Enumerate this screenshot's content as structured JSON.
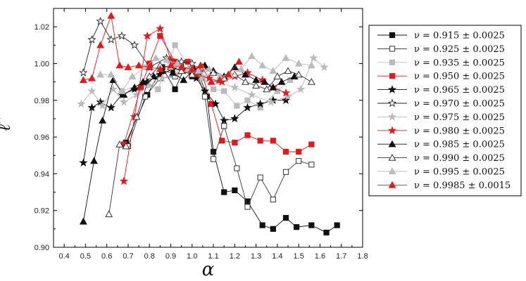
{
  "chart_data": {
    "type": "line",
    "title": "",
    "xlabel": "α",
    "ylabel": "ℓ̂",
    "xlim": [
      0.35,
      1.8
    ],
    "ylim": [
      0.9,
      1.03
    ],
    "x_ticks": [
      "0.4",
      "0.5",
      "0.6",
      "0.7",
      "0.8",
      "0.9",
      "1.0",
      "1.1",
      "1.2",
      "1.3",
      "1.4",
      "1.5",
      "1.6",
      "1.7",
      "1.8"
    ],
    "y_ticks": [
      "0.90",
      "0.92",
      "0.94",
      "0.96",
      "0.98",
      "1.00",
      "1.02"
    ],
    "grid": false,
    "legend_position": "right",
    "series": [
      {
        "name": "ν = 0.915 ± 0.0025",
        "color": "#111111",
        "marker": "square",
        "filled": true,
        "x": [
          0.69,
          0.79,
          0.86,
          0.92,
          0.97,
          1.0,
          1.03,
          1.07,
          1.1,
          1.15,
          1.2,
          1.26,
          1.33,
          1.38,
          1.44,
          1.49,
          1.56,
          1.63,
          1.68
        ],
        "y": [
          0.957,
          0.983,
          0.998,
          0.986,
          0.999,
          0.993,
          0.995,
          0.982,
          0.952,
          0.93,
          0.931,
          0.925,
          0.912,
          0.91,
          0.916,
          0.911,
          0.912,
          0.908,
          0.912
        ]
      },
      {
        "name": "ν = 0.925 ± 0.0025",
        "color": "#333333",
        "marker": "square",
        "filled": false,
        "x": [
          0.7,
          0.78,
          0.85,
          0.92,
          0.97,
          1.02,
          1.06,
          1.1,
          1.15,
          1.21,
          1.26,
          1.32,
          1.38,
          1.44,
          1.5,
          1.56
        ],
        "y": [
          0.955,
          0.982,
          0.992,
          0.993,
          0.999,
          0.996,
          0.982,
          0.948,
          0.966,
          0.943,
          0.922,
          0.938,
          0.926,
          0.941,
          0.947,
          0.945
        ]
      },
      {
        "name": "ν = 0.935 ± 0.0025",
        "color": "#bbbbbb",
        "marker": "square",
        "filled": true,
        "x": [
          0.67,
          0.77,
          0.84,
          0.92,
          1.0,
          1.05,
          1.1,
          1.15,
          1.21,
          1.26,
          1.32,
          1.4,
          1.46
        ],
        "y": [
          0.985,
          0.989,
          0.986,
          1.01,
          0.996,
          0.992,
          0.986,
          0.985,
          0.977,
          0.98,
          0.976,
          0.985,
          0.991
        ]
      },
      {
        "name": "ν = 0.950 ± 0.0025",
        "color": "#e31a1c",
        "marker": "square",
        "filled": true,
        "x": [
          0.68,
          0.76,
          0.8,
          0.85,
          0.92,
          0.98,
          1.04,
          1.09,
          1.14,
          1.2,
          1.26,
          1.32,
          1.38,
          1.44,
          1.5,
          1.56
        ],
        "y": [
          0.956,
          0.987,
          1.0,
          1.015,
          1.001,
          1.001,
          0.997,
          0.978,
          0.958,
          0.957,
          0.961,
          0.958,
          0.958,
          0.952,
          0.952,
          0.956
        ]
      },
      {
        "name": "ν = 0.965 ± 0.0025",
        "color": "#111111",
        "marker": "star",
        "filled": true,
        "x": [
          0.49,
          0.53,
          0.57,
          0.62,
          0.67,
          0.73,
          0.79,
          0.85,
          0.91,
          0.96,
          1.02,
          1.06,
          1.11,
          1.15,
          1.2,
          1.26,
          1.32,
          1.38,
          1.44
        ],
        "y": [
          0.946,
          0.976,
          0.979,
          0.976,
          0.983,
          0.986,
          0.99,
          0.994,
          0.997,
          0.997,
          0.992,
          0.985,
          0.978,
          0.969,
          0.97,
          0.976,
          0.978,
          0.98,
          0.98
        ]
      },
      {
        "name": "ν = 0.970 ± 0.0025",
        "color": "#222222",
        "marker": "star",
        "filled": false,
        "x": [
          0.49,
          0.53,
          0.57,
          0.62,
          0.67,
          0.73,
          0.8,
          0.88,
          0.95,
          1.0
        ],
        "y": [
          0.995,
          1.013,
          1.023,
          1.013,
          1.015,
          1.01,
          0.998,
          1.003,
          1.001,
          1.0
        ]
      },
      {
        "name": "ν = 0.975 ± 0.0025",
        "color": "#bbbbbb",
        "marker": "star",
        "filled": true,
        "x": [
          0.48,
          0.53,
          0.58,
          0.63,
          0.68,
          0.74,
          0.8,
          0.86,
          0.93,
          0.99,
          1.05,
          1.12,
          1.2,
          1.28,
          1.37,
          1.45,
          1.51,
          1.57,
          1.62
        ],
        "y": [
          0.978,
          0.985,
          0.977,
          0.986,
          0.979,
          0.983,
          0.988,
          0.992,
          0.994,
          0.996,
          0.993,
          0.99,
          0.987,
          0.983,
          0.979,
          0.982,
          0.986,
          1.003,
          0.998
        ]
      },
      {
        "name": "ν = 0.980 ± 0.0025",
        "color": "#e31a1c",
        "marker": "star",
        "filled": true,
        "x": [
          0.68,
          0.73,
          0.79,
          0.85,
          0.9,
          0.96,
          1.02,
          1.08,
          1.14,
          1.2,
          1.26,
          1.33,
          1.38,
          1.44
        ],
        "y": [
          0.936,
          0.971,
          1.015,
          1.019,
          1.002,
          0.996,
          0.994,
          0.992,
          0.99,
          0.993,
          0.995,
          0.991,
          0.987,
          0.984
        ]
      },
      {
        "name": "ν = 0.985 ± 0.0025",
        "color": "#111111",
        "marker": "triangle",
        "filled": true,
        "x": [
          0.49,
          0.54,
          0.58,
          0.63,
          0.68,
          0.73,
          0.77,
          0.82,
          0.86,
          0.91,
          0.96,
          1.01,
          1.06,
          1.1,
          1.15,
          1.2,
          1.25,
          1.3,
          1.34,
          1.38,
          1.42,
          1.48
        ],
        "y": [
          0.914,
          0.947,
          0.969,
          0.991,
          0.983,
          0.987,
          0.99,
          0.993,
          0.996,
          0.995,
          0.991,
          0.997,
          0.999,
          0.996,
          0.993,
          0.998,
          0.994,
          0.991,
          0.99,
          0.987,
          0.99,
          0.993
        ]
      },
      {
        "name": "ν = 0.990 ± 0.0025",
        "color": "#333333",
        "marker": "triangle",
        "filled": false,
        "x": [
          0.61,
          0.66,
          0.69,
          0.74,
          0.8,
          0.85,
          0.9,
          0.95,
          1.0,
          1.05,
          1.1,
          1.15,
          1.2,
          1.25,
          1.3,
          1.35,
          1.4,
          1.45,
          1.5,
          1.56
        ],
        "y": [
          0.918,
          0.956,
          0.955,
          0.971,
          0.993,
          0.999,
          0.998,
          0.996,
          0.994,
          0.998,
          0.995,
          0.992,
          0.994,
          0.99,
          0.988,
          0.986,
          0.993,
          0.996,
          0.994,
          0.99
        ]
      },
      {
        "name": "ν = 0.995 ± 0.0025",
        "color": "#bbbbbb",
        "marker": "triangle",
        "filled": true,
        "x": [
          0.57,
          0.62,
          0.67,
          0.72,
          0.78,
          0.83,
          0.88,
          0.93,
          0.98,
          1.03,
          1.08,
          1.13,
          1.18,
          1.23,
          1.28,
          1.33,
          1.38,
          1.44,
          1.5,
          1.56
        ],
        "y": [
          0.994,
          0.994,
          0.985,
          0.993,
          0.998,
          1.003,
          1.002,
          1.0,
          0.997,
          0.996,
          0.997,
          0.993,
          0.994,
          0.997,
          1.004,
          0.999,
          0.996,
          1.003,
          1.0,
          0.999
        ]
      },
      {
        "name": "ν = 0.9985 ± 0.0015",
        "color": "#e31a1c",
        "marker": "triangle",
        "filled": true,
        "x": [
          0.49,
          0.53,
          0.57,
          0.62,
          0.66,
          0.7,
          0.75,
          0.8,
          0.85,
          0.9,
          0.95,
          1.0,
          1.04,
          1.09,
          1.13,
          1.17,
          1.22
        ],
        "y": [
          0.991,
          0.992,
          1.01,
          1.026,
          0.999,
          0.998,
          0.999,
          0.998,
          0.997,
          0.999,
          0.998,
          0.997,
          0.999,
          0.99,
          0.991,
          0.994,
          1.001
        ]
      }
    ]
  }
}
